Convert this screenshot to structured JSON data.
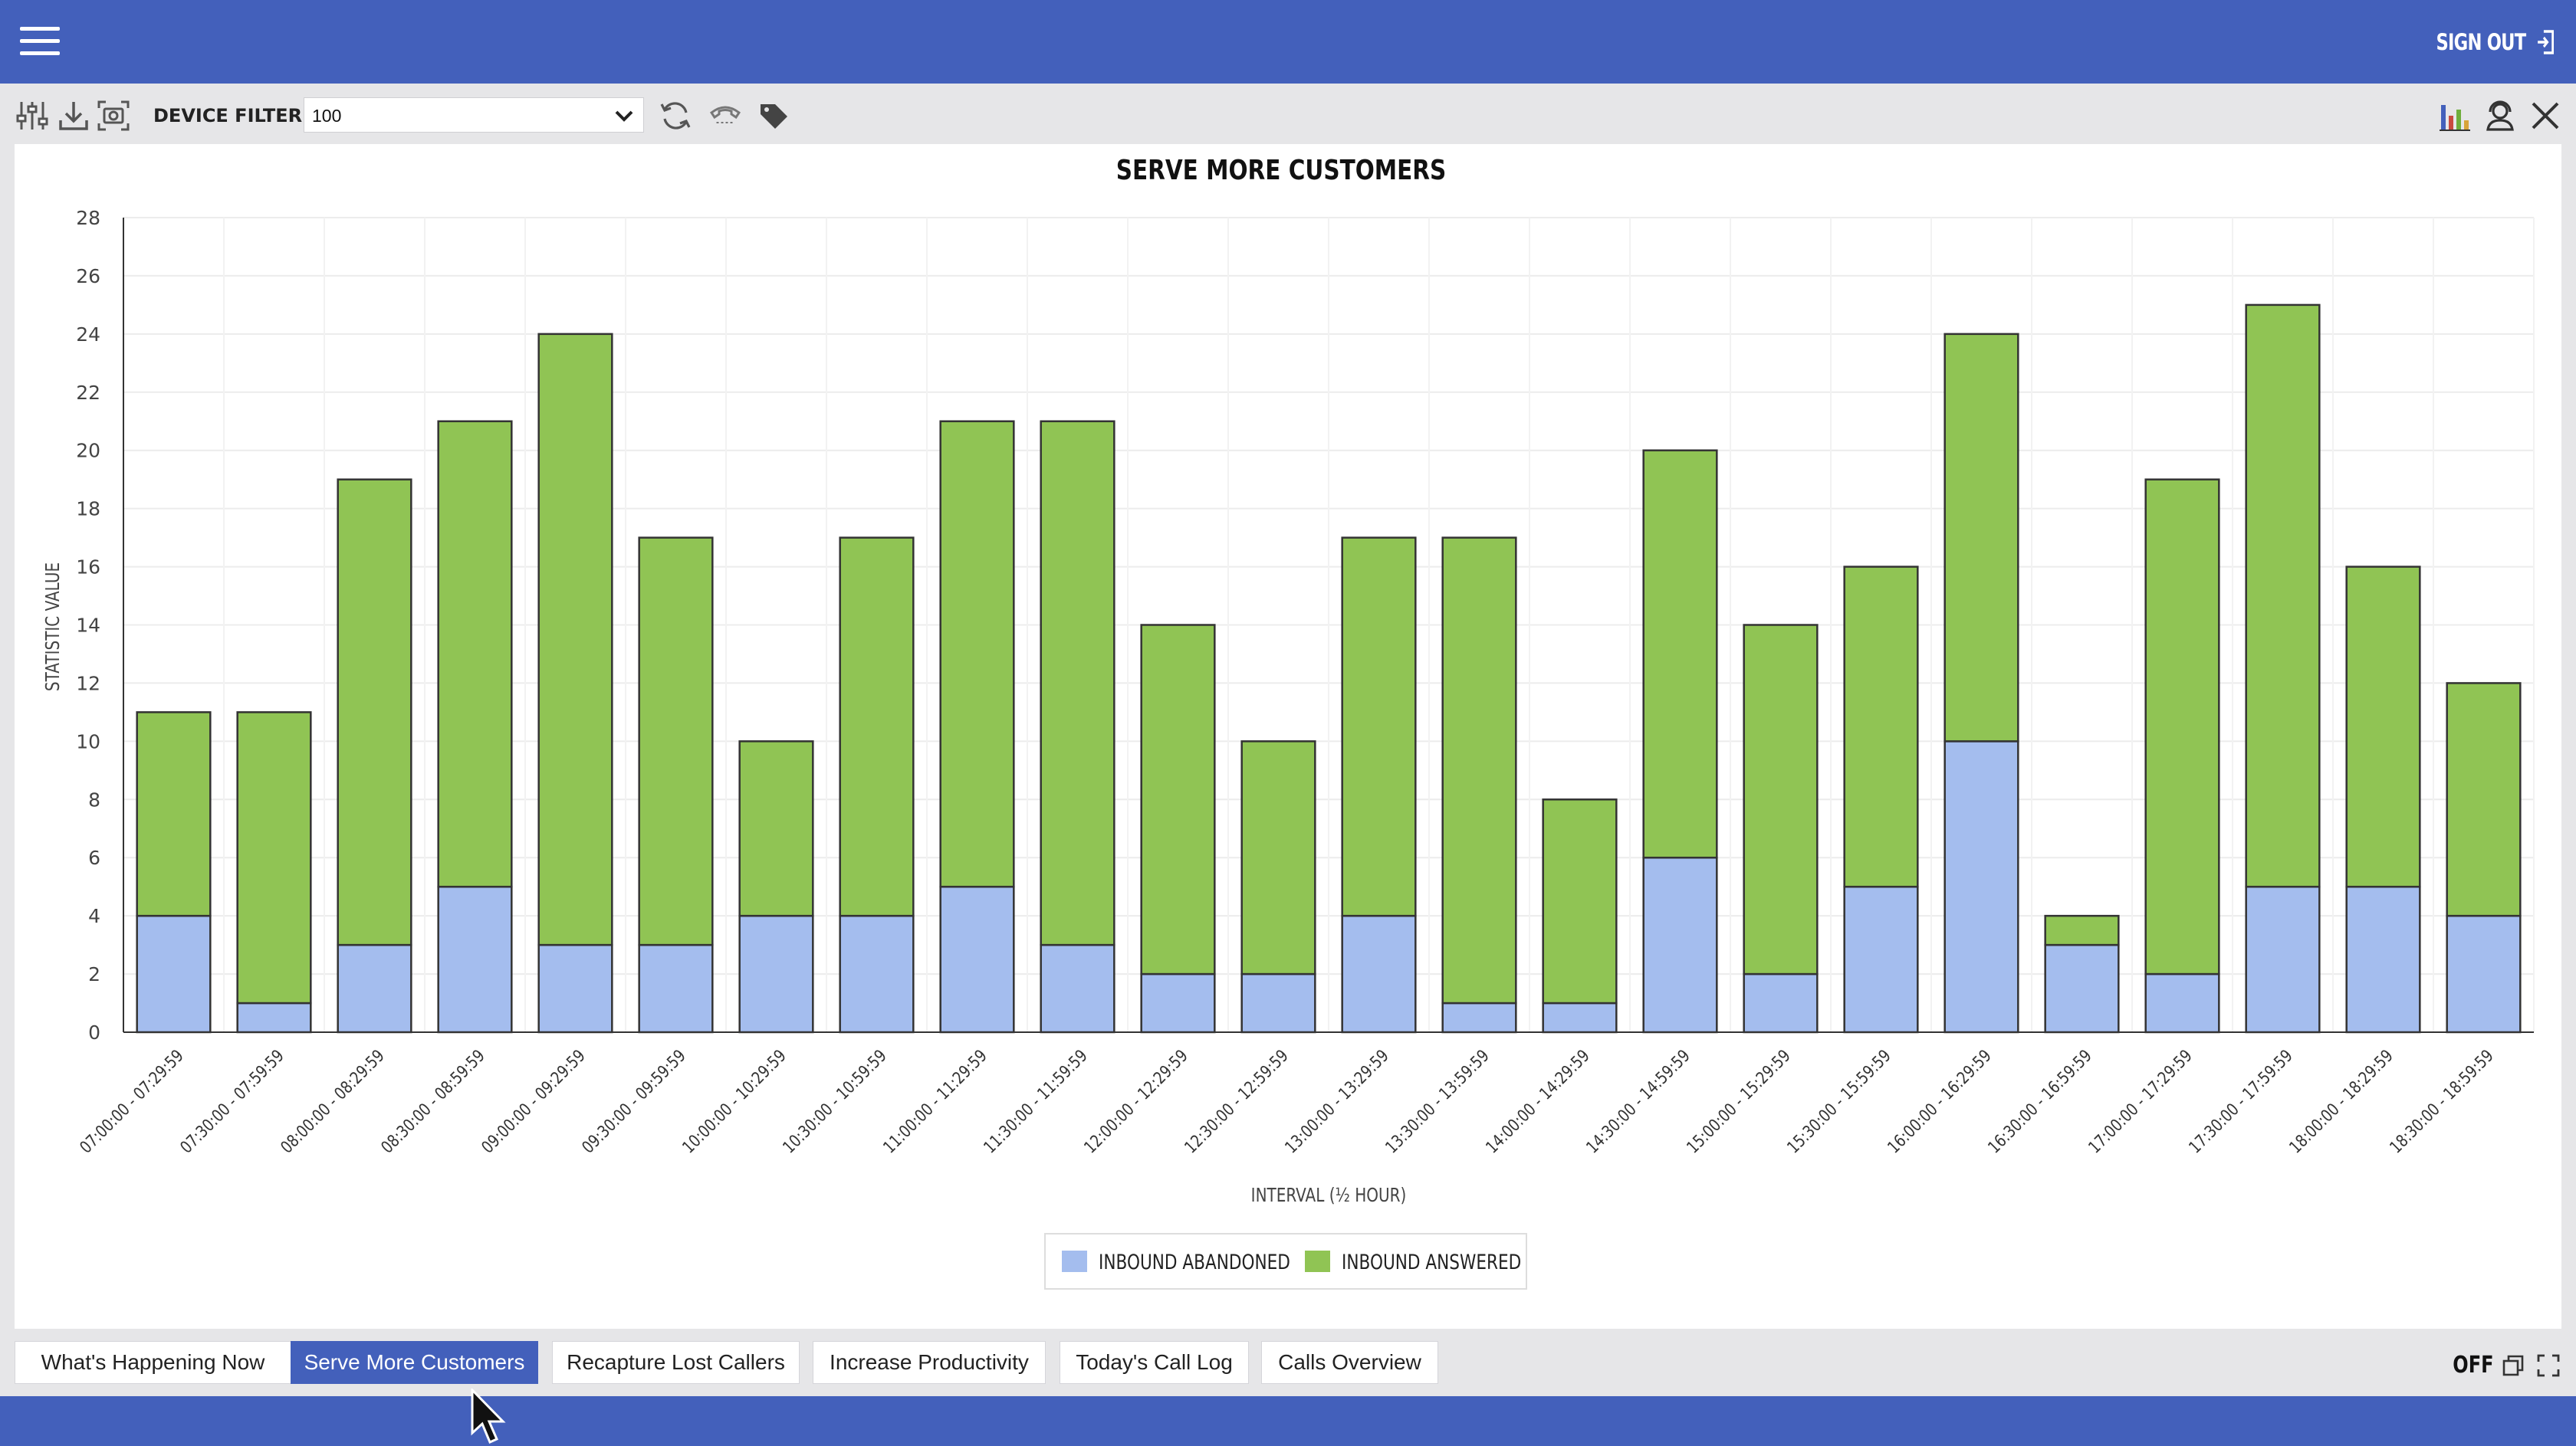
{
  "topbar": {
    "signout_label": "SIGN OUT"
  },
  "toolbar": {
    "icons": [
      "sliders-icon",
      "download-icon",
      "screenshot-icon",
      "refresh-icon",
      "phone-icon",
      "tag-icon"
    ],
    "device_filter_label": "DEVICE FILTER:",
    "device_filter_value": "100",
    "right_icons": [
      "bar-chart-icon",
      "agent-icon",
      "close-icon"
    ]
  },
  "chart_data": {
    "type": "bar",
    "stacked": true,
    "title": "SERVE MORE CUSTOMERS",
    "xlabel": "INTERVAL (½ HOUR)",
    "ylabel": "STATISTIC VALUE",
    "ylim": [
      0,
      28
    ],
    "yticks": [
      0,
      2,
      4,
      6,
      8,
      10,
      12,
      14,
      16,
      18,
      20,
      22,
      24,
      26,
      28
    ],
    "grid": true,
    "legend_position": "bottom-center",
    "categories": [
      "07:00:00 - 07:29:59",
      "07:30:00 - 07:59:59",
      "08:00:00 - 08:29:59",
      "08:30:00 - 08:59:59",
      "09:00:00 - 09:29:59",
      "09:30:00 - 09:59:59",
      "10:00:00 - 10:29:59",
      "10:30:00 - 10:59:59",
      "11:00:00 - 11:29:59",
      "11:30:00 - 11:59:59",
      "12:00:00 - 12:29:59",
      "12:30:00 - 12:59:59",
      "13:00:00 - 13:29:59",
      "13:30:00 - 13:59:59",
      "14:00:00 - 14:29:59",
      "14:30:00 - 14:59:59",
      "15:00:00 - 15:29:59",
      "15:30:00 - 15:59:59",
      "16:00:00 - 16:29:59",
      "16:30:00 - 16:59:59",
      "17:00:00 - 17:29:59",
      "17:30:00 - 17:59:59",
      "18:00:00 - 18:29:59",
      "18:30:00 - 18:59:59"
    ],
    "series": [
      {
        "name": "INBOUND ABANDONED",
        "color": "#a4bdee",
        "values": [
          4,
          1,
          3,
          5,
          3,
          3,
          4,
          4,
          5,
          3,
          2,
          2,
          4,
          1,
          1,
          6,
          2,
          5,
          10,
          3,
          2,
          5,
          5,
          4
        ]
      },
      {
        "name": "INBOUND ANSWERED",
        "color": "#90c454",
        "values": [
          7,
          10,
          16,
          16,
          21,
          14,
          6,
          13,
          16,
          18,
          12,
          8,
          13,
          16,
          7,
          14,
          12,
          11,
          14,
          1,
          17,
          20,
          11,
          8
        ]
      }
    ]
  },
  "tabs": [
    {
      "label": "What's Happening Now",
      "active": false
    },
    {
      "label": "Serve More Customers",
      "active": true
    },
    {
      "label": "Recapture Lost Callers",
      "active": false
    },
    {
      "label": "Increase Productivity",
      "active": false
    },
    {
      "label": "Today's Call Log",
      "active": false
    },
    {
      "label": "Calls Overview",
      "active": false
    }
  ],
  "footer": {
    "rotation_label": "OFF"
  },
  "colors": {
    "brand": "#4360bb",
    "abandoned": "#a4bdee",
    "answered": "#90c454"
  }
}
